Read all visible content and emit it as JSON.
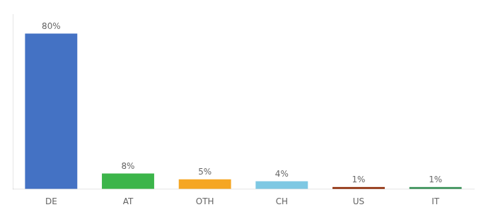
{
  "chart_data": {
    "type": "bar",
    "categories": [
      "DE",
      "AT",
      "OTH",
      "CH",
      "US",
      "IT"
    ],
    "values": [
      80,
      8,
      5,
      4,
      1,
      1
    ],
    "value_labels": [
      "80%",
      "8%",
      "5%",
      "4%",
      "1%",
      "1%"
    ],
    "colors": [
      "#4472c4",
      "#3cb54a",
      "#f5a623",
      "#7ec8e3",
      "#8b2500",
      "#2d8a4e"
    ],
    "ylim": [
      0,
      90
    ],
    "grid": false,
    "data_labels": true,
    "tick_labels": "x"
  }
}
